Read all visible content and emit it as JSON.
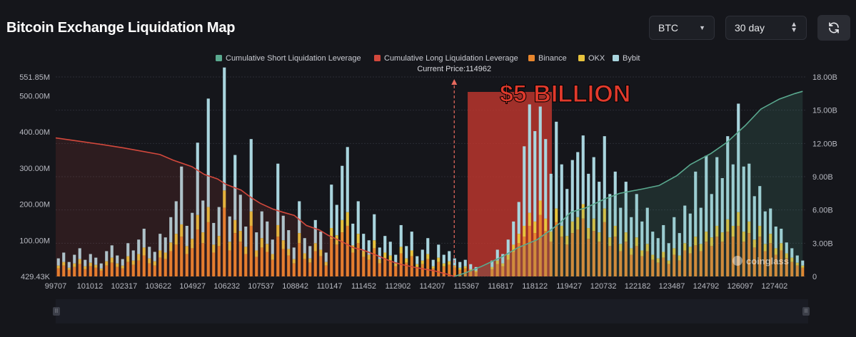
{
  "header": {
    "title": "Bitcoin Exchange Liquidation Map",
    "coin_select": "BTC",
    "range_select": "30 day"
  },
  "colors": {
    "short_cumulative": "#5aa98f",
    "long_cumulative": "#d2483c",
    "binance": "#e8862d",
    "okx": "#e7c33d",
    "bybit": "#a9d5de",
    "highlight": "#c8392e",
    "annotation": "#e03a2c"
  },
  "chart_data": {
    "type": "bar",
    "title": "Bitcoin Exchange Liquidation Map",
    "current_price_label": "Current Price:114962",
    "current_price": 114962,
    "annotation": "$5 BILLION",
    "watermark": "coinglass",
    "legend": [
      {
        "name": "Cumulative Short Liquidation Leverage",
        "color": "#5aa98f"
      },
      {
        "name": "Cumulative Long Liquidation Leverage",
        "color": "#d2483c"
      },
      {
        "name": "Binance",
        "color": "#e8862d"
      },
      {
        "name": "OKX",
        "color": "#e7c33d"
      },
      {
        "name": "Bybit",
        "color": "#a9d5de"
      }
    ],
    "legend_position": "top-center",
    "x_range": [
      99707,
      128400
    ],
    "x_ticks": [
      "99707",
      "101012",
      "102317",
      "103622",
      "104927",
      "106232",
      "107537",
      "108842",
      "110147",
      "111452",
      "112902",
      "114207",
      "115367",
      "116817",
      "118122",
      "119427",
      "120732",
      "122182",
      "123487",
      "124792",
      "126097",
      "127402"
    ],
    "y_left_ticks": [
      "429.43K",
      "100.00M",
      "200.00M",
      "300.00M",
      "400.00M",
      "500.00M",
      "551.85M"
    ],
    "y_left_range": [
      0,
      551.85
    ],
    "y_right_ticks": [
      "0",
      "3.00B",
      "6.00B",
      "9.00B",
      "12.00B",
      "15.00B",
      "18.00B"
    ],
    "y_right_range": [
      0,
      18
    ],
    "highlight_range": [
      115367,
      118700
    ],
    "long_cumulative_line": [
      [
        99707,
        12.5
      ],
      [
        100600,
        12.2
      ],
      [
        101500,
        11.9
      ],
      [
        102300,
        11.6
      ],
      [
        103000,
        11.3
      ],
      [
        103700,
        11.0
      ],
      [
        104200,
        10.5
      ],
      [
        104927,
        9.9
      ],
      [
        105400,
        9.2
      ],
      [
        105900,
        8.8
      ],
      [
        106232,
        8.3
      ],
      [
        106800,
        7.8
      ],
      [
        107200,
        7.1
      ],
      [
        107537,
        6.6
      ],
      [
        108000,
        6.1
      ],
      [
        108400,
        5.8
      ],
      [
        108842,
        5.5
      ],
      [
        109300,
        4.6
      ],
      [
        109800,
        4.2
      ],
      [
        110147,
        3.7
      ],
      [
        110700,
        3.1
      ],
      [
        111100,
        2.6
      ],
      [
        111452,
        2.4
      ],
      [
        112000,
        1.9
      ],
      [
        112500,
        1.4
      ],
      [
        112902,
        1.1
      ],
      [
        113500,
        0.8
      ],
      [
        114207,
        0.5
      ],
      [
        114700,
        0.2
      ],
      [
        114962,
        0.0
      ]
    ],
    "short_cumulative_line": [
      [
        114962,
        0.0
      ],
      [
        115367,
        0.3
      ],
      [
        116000,
        0.9
      ],
      [
        116817,
        1.8
      ],
      [
        117400,
        2.6
      ],
      [
        118122,
        3.3
      ],
      [
        118600,
        4.1
      ],
      [
        119000,
        4.8
      ],
      [
        119427,
        5.8
      ],
      [
        120000,
        6.2
      ],
      [
        120732,
        7.0
      ],
      [
        121300,
        7.5
      ],
      [
        122182,
        7.9
      ],
      [
        122800,
        8.2
      ],
      [
        123487,
        9.1
      ],
      [
        124000,
        10.1
      ],
      [
        124792,
        11.1
      ],
      [
        125400,
        12.1
      ],
      [
        126097,
        13.6
      ],
      [
        126700,
        15.1
      ],
      [
        127402,
        16.0
      ],
      [
        128000,
        16.5
      ],
      [
        128300,
        16.7
      ]
    ],
    "series": [
      {
        "name": "Binance",
        "values": [
          22,
          30,
          18,
          26,
          34,
          20,
          28,
          24,
          16,
          30,
          38,
          26,
          22,
          40,
          32,
          44,
          58,
          36,
          30,
          52,
          48,
          70,
          88,
          110,
          62,
          78,
          130,
          92,
          150,
          66,
          84,
          190,
          72,
          120,
          96,
          62,
          140,
          54,
          80,
          68,
          46,
          110,
          76,
          58,
          36,
          92,
          48,
          38,
          70,
          56,
          30,
          104,
          88,
          122,
          140,
          66,
          92,
          54,
          46,
          78,
          36,
          50,
          44,
          28,
          64,
          38,
          56,
          26,
          34,
          48,
          22,
          40,
          28,
          32,
          24,
          18,
          22,
          16,
          12,
          0,
          0,
          20,
          34,
          28,
          46,
          68,
          92,
          110,
          140,
          120,
          170,
          126,
          96,
          150,
          110,
          88,
          120,
          130,
          160,
          104,
          126,
          96,
          150,
          84,
          110,
          70,
          96,
          60,
          84,
          56,
          70,
          46,
          38,
          52,
          34,
          60,
          44,
          72,
          64,
          86,
          70,
          96,
          84,
          110,
          96,
          124,
          110,
          140,
          96,
          120,
          80,
          110,
          70,
          92,
          60,
          72,
          50,
          40,
          30,
          24
        ]
      },
      {
        "name": "OKX",
        "values": [
          8,
          10,
          6,
          10,
          14,
          8,
          10,
          8,
          6,
          12,
          14,
          10,
          8,
          16,
          12,
          18,
          22,
          14,
          12,
          20,
          18,
          24,
          30,
          34,
          22,
          26,
          40,
          30,
          42,
          22,
          28,
          48,
          24,
          36,
          30,
          20,
          40,
          18,
          26,
          22,
          16,
          32,
          24,
          18,
          12,
          28,
          16,
          12,
          22,
          18,
          10,
          30,
          26,
          34,
          38,
          20,
          26,
          16,
          14,
          22,
          12,
          16,
          14,
          8,
          18,
          12,
          16,
          8,
          10,
          14,
          6,
          12,
          8,
          10,
          6,
          6,
          6,
          4,
          4,
          0,
          0,
          6,
          10,
          8,
          14,
          20,
          26,
          30,
          36,
          32,
          40,
          34,
          28,
          38,
          30,
          24,
          32,
          34,
          40,
          30,
          34,
          26,
          38,
          24,
          30,
          20,
          26,
          18,
          24,
          16,
          20,
          14,
          12,
          16,
          10,
          18,
          14,
          20,
          18,
          24,
          20,
          28,
          24,
          30,
          26,
          34,
          30,
          38,
          28,
          32,
          22,
          30,
          20,
          26,
          18,
          20,
          14,
          12,
          8,
          6
        ]
      },
      {
        "name": "Bybit",
        "values": [
          20,
          26,
          16,
          24,
          30,
          18,
          24,
          20,
          14,
          28,
          34,
          22,
          18,
          36,
          28,
          40,
          52,
          32,
          26,
          46,
          42,
          70,
          90,
          160,
          56,
          72,
          200,
          88,
          300,
          60,
          80,
          340,
          70,
          180,
          100,
          56,
          200,
          50,
          74,
          62,
          40,
          170,
          68,
          52,
          32,
          88,
          42,
          34,
          64,
          50,
          26,
          120,
          84,
          150,
          180,
          60,
          90,
          48,
          40,
          72,
          32,
          46,
          38,
          24,
          60,
          34,
          52,
          22,
          30,
          44,
          18,
          36,
          24,
          28,
          20,
          16,
          18,
          14,
          10,
          0,
          0,
          18,
          30,
          26,
          42,
          64,
          88,
          220,
          300,
          250,
          260,
          220,
          160,
          240,
          170,
          130,
          170,
          180,
          190,
          150,
          170,
          140,
          200,
          120,
          150,
          100,
          140,
          86,
          120,
          80,
          100,
          64,
          56,
          74,
          48,
          86,
          62,
          104,
          92,
          180,
          100,
          210,
          120,
          190,
          150,
          230,
          170,
          300,
          180,
          160,
          120,
          110,
          90,
          70,
          60,
          40,
          30,
          26,
          20,
          14
        ]
      }
    ]
  },
  "scrollbar": {
    "left_handle": "II",
    "right_handle": "II"
  }
}
